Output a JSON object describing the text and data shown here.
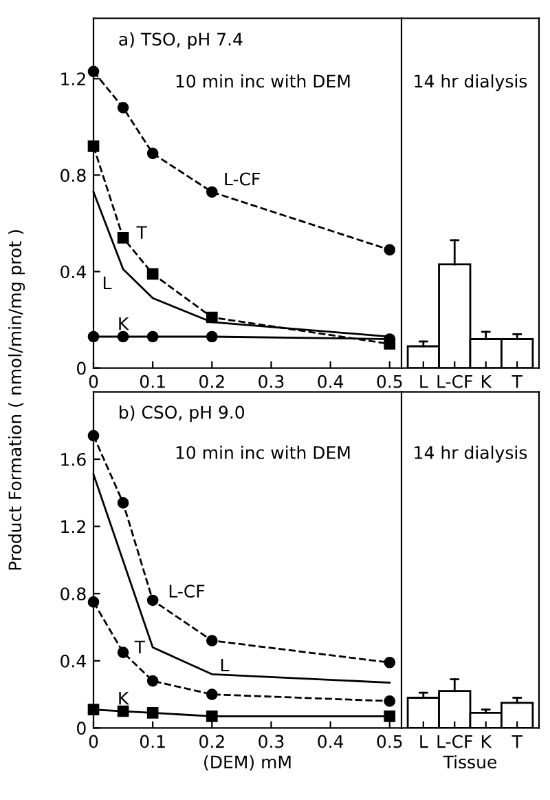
{
  "chart_data": [
    {
      "type": "line",
      "title": "a) TSO, pH 7.4",
      "ylabel": "Product Formation ( nmol/min/mg prot )",
      "annotations": [
        "10 min inc with DEM"
      ],
      "xlim": [
        0,
        0.52
      ],
      "xticks": [
        0,
        0.1,
        0.2,
        0.3,
        0.4,
        0.5
      ],
      "ylim": [
        0,
        1.45
      ],
      "yticks": [
        0,
        0.4,
        0.8,
        1.2
      ],
      "series": [
        {
          "name": "L-CF",
          "color": "#000000",
          "line_style": "dashed",
          "marker": "circle",
          "x": [
            0,
            0.05,
            0.1,
            0.2,
            0.5
          ],
          "values": [
            1.23,
            1.08,
            0.89,
            0.73,
            0.49
          ]
        },
        {
          "name": "T",
          "color": "#000000",
          "line_style": "dashed",
          "marker": "square",
          "x": [
            0,
            0.05,
            0.1,
            0.2,
            0.5
          ],
          "values": [
            0.92,
            0.54,
            0.39,
            0.21,
            0.1
          ]
        },
        {
          "name": "L",
          "color": "#000000",
          "line_style": "solid",
          "marker": "none",
          "x": [
            0,
            0.05,
            0.1,
            0.2,
            0.5
          ],
          "values": [
            0.73,
            0.41,
            0.29,
            0.19,
            0.13
          ]
        },
        {
          "name": "K",
          "color": "#000000",
          "line_style": "solid",
          "marker": "circle",
          "x": [
            0,
            0.05,
            0.1,
            0.2,
            0.5
          ],
          "values": [
            0.13,
            0.13,
            0.13,
            0.13,
            0.12
          ]
        }
      ]
    },
    {
      "type": "bar",
      "annotations": [
        "14 hr dialysis"
      ],
      "categories": [
        "L",
        "L-CF",
        "K",
        "T"
      ],
      "values": [
        0.09,
        0.43,
        0.12,
        0.12
      ],
      "errors": [
        [
          0.09,
          0.11
        ],
        [
          0.43,
          0.53
        ],
        [
          0.12,
          0.15
        ],
        [
          0.12,
          0.14
        ]
      ],
      "color": "#ffffff",
      "ylim": [
        0,
        1.45
      ],
      "tick_labels": "x"
    },
    {
      "type": "line",
      "title": "b) CSO, pH 9.0",
      "xlabel": "(DEM) mM",
      "annotations": [
        "10 min inc with DEM"
      ],
      "xlim": [
        0,
        0.52
      ],
      "xticks": [
        0,
        0.1,
        0.2,
        0.3,
        0.4,
        0.5
      ],
      "ylim": [
        0,
        2.0
      ],
      "yticks": [
        0,
        0.4,
        0.8,
        1.2,
        1.6
      ],
      "series": [
        {
          "name": "L-CF",
          "color": "#000000",
          "line_style": "dashed",
          "marker": "circle",
          "x": [
            0,
            0.05,
            0.1,
            0.2,
            0.5
          ],
          "values": [
            1.74,
            1.34,
            0.76,
            0.52,
            0.39
          ]
        },
        {
          "name": "L",
          "color": "#000000",
          "line_style": "solid",
          "marker": "none",
          "x": [
            0,
            0.1,
            0.2,
            0.5
          ],
          "values": [
            1.51,
            0.48,
            0.32,
            0.27
          ]
        },
        {
          "name": "T",
          "color": "#000000",
          "line_style": "dashed",
          "marker": "circle",
          "x": [
            0,
            0.05,
            0.1,
            0.2,
            0.5
          ],
          "values": [
            0.75,
            0.45,
            0.28,
            0.2,
            0.16
          ]
        },
        {
          "name": "K",
          "color": "#000000",
          "line_style": "solid",
          "marker": "square",
          "x": [
            0,
            0.05,
            0.1,
            0.2,
            0.5
          ],
          "values": [
            0.11,
            0.1,
            0.09,
            0.07,
            0.07
          ]
        }
      ]
    },
    {
      "type": "bar",
      "xlabel": "Tissue",
      "annotations": [
        "14 hr dialysis"
      ],
      "categories": [
        "L",
        "L-CF",
        "K",
        "T"
      ],
      "values": [
        0.18,
        0.22,
        0.09,
        0.15
      ],
      "errors": [
        [
          0.18,
          0.21
        ],
        [
          0.22,
          0.29
        ],
        [
          0.09,
          0.11
        ],
        [
          0.15,
          0.18
        ]
      ],
      "color": "#ffffff",
      "ylim": [
        0,
        2.0
      ],
      "tick_labels": "x"
    }
  ]
}
